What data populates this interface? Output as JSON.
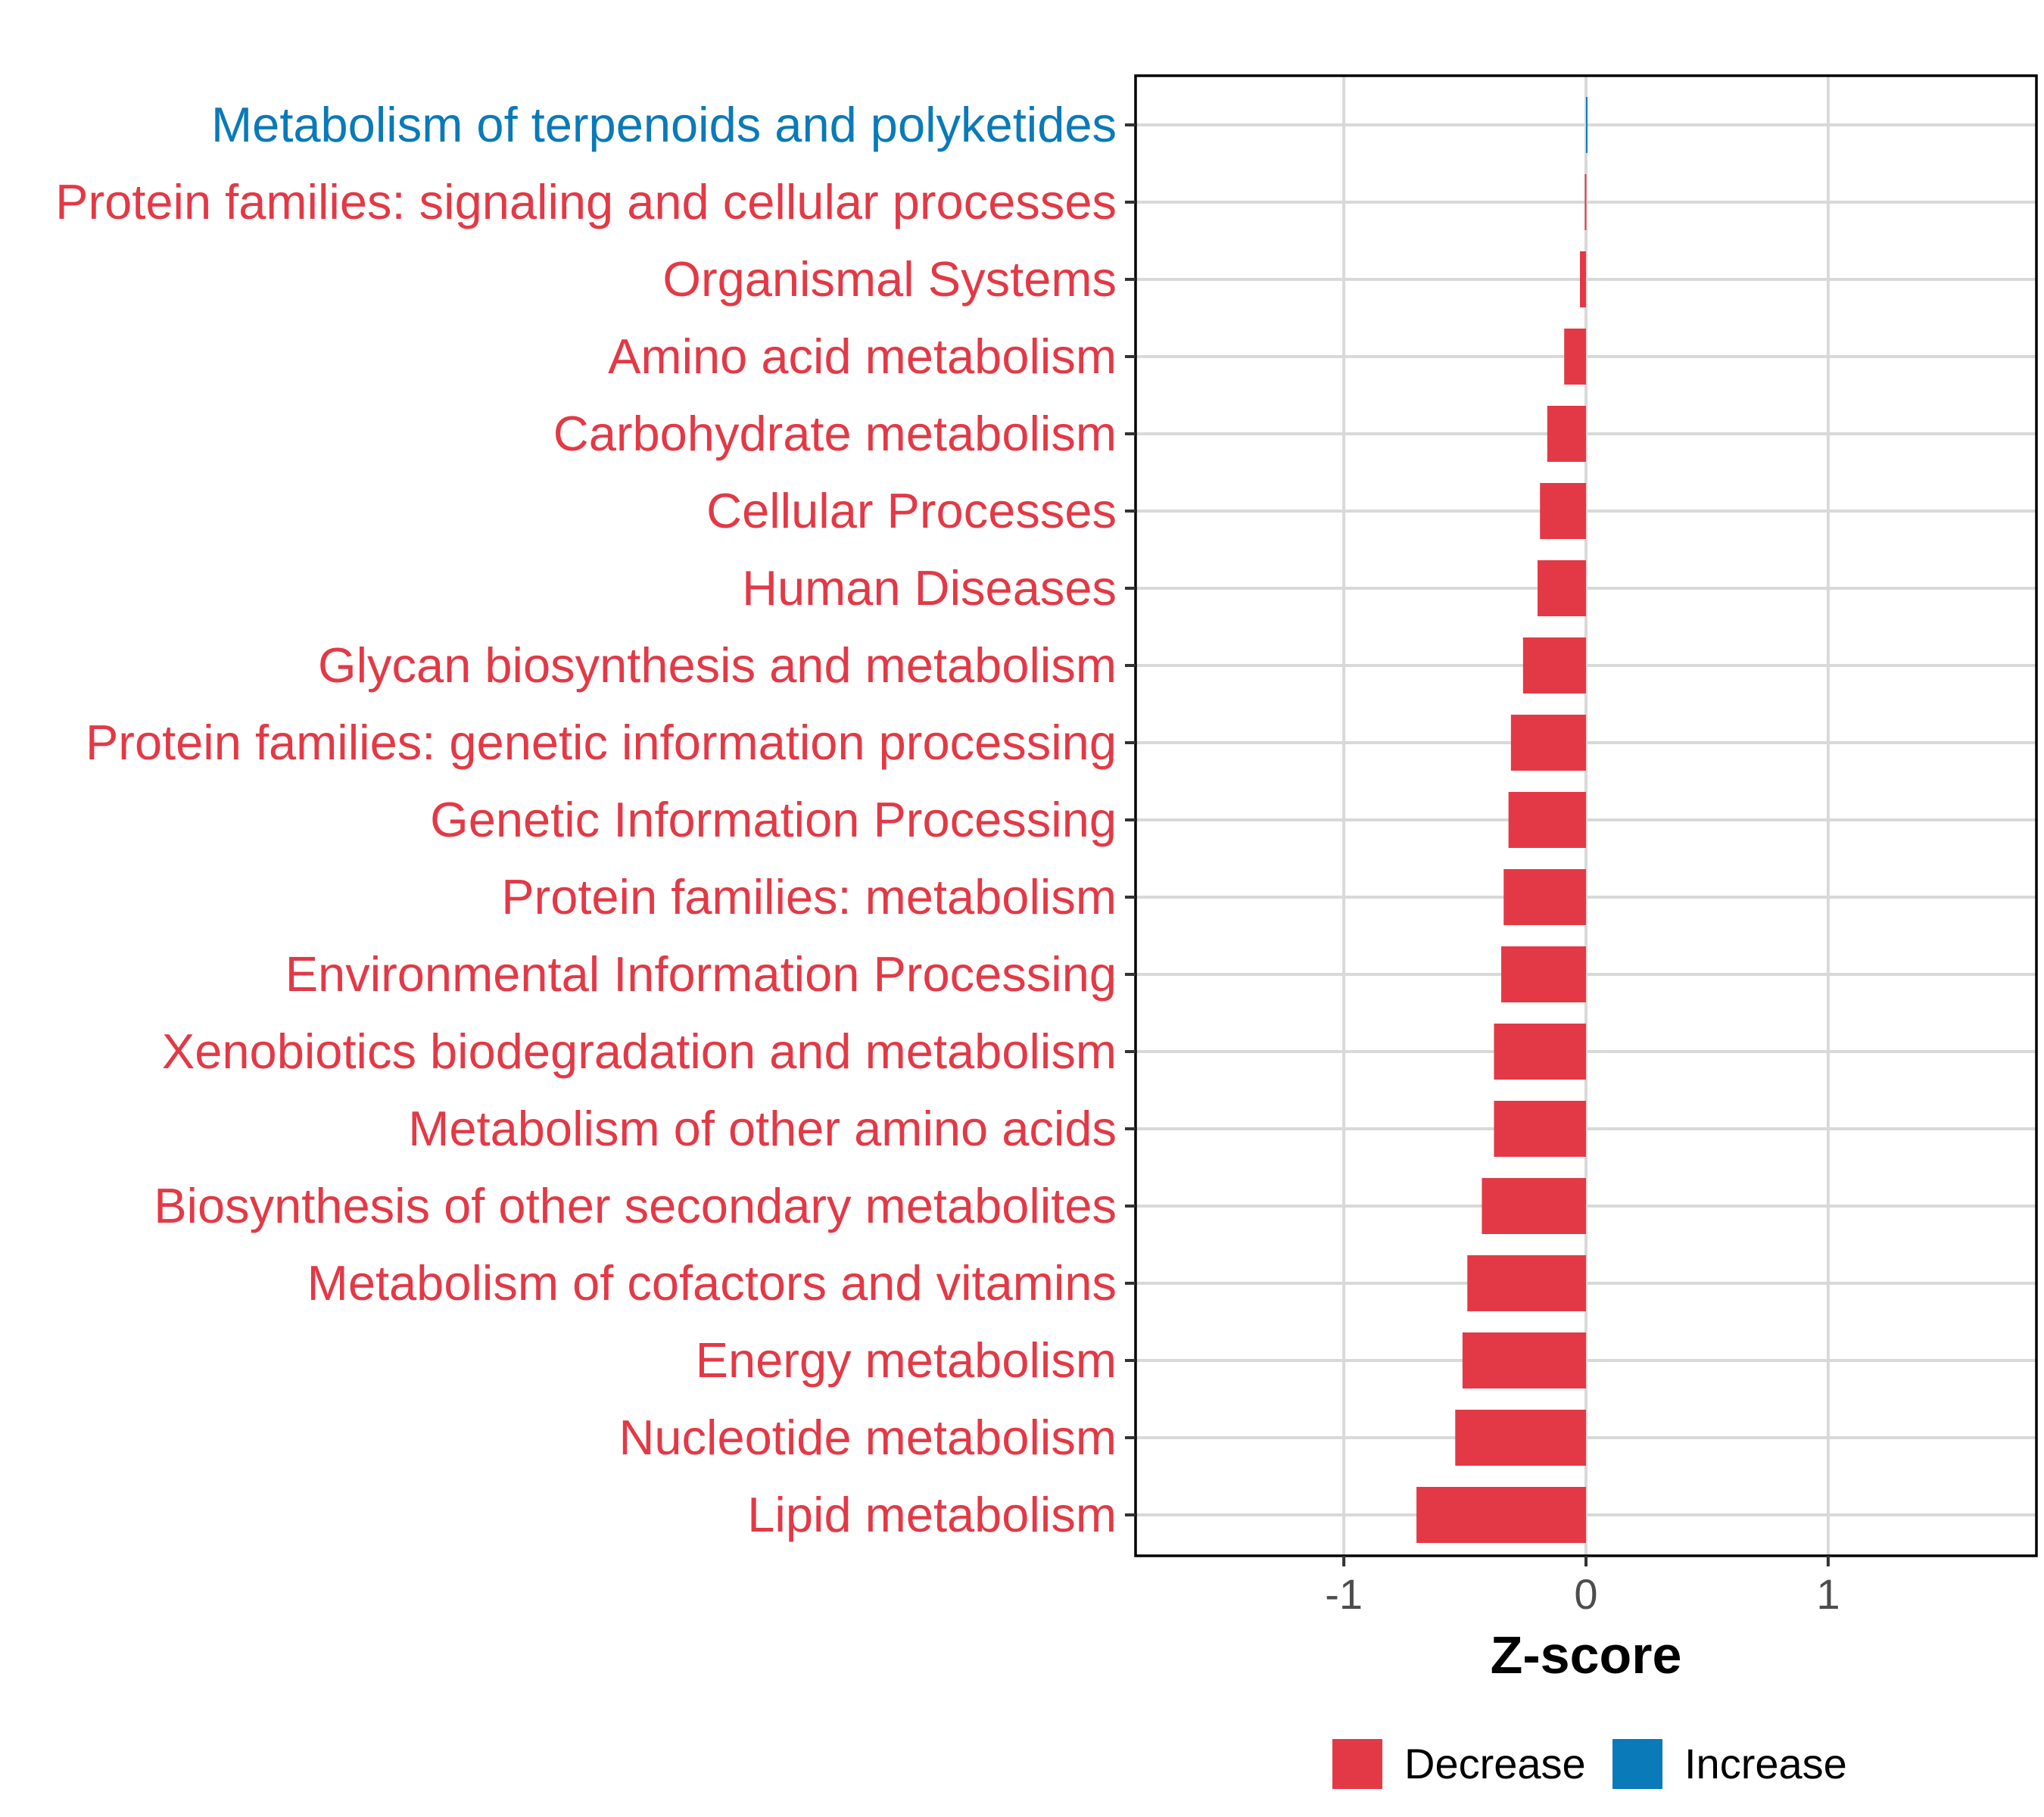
{
  "chart_data": {
    "type": "bar",
    "orientation": "horizontal",
    "title": "",
    "xlabel": "Z-score",
    "ylabel": "",
    "xlim": [
      -1.86,
      1.86
    ],
    "xticks": [
      -1,
      0,
      1
    ],
    "xtick_labels": [
      "-1",
      "0",
      "1"
    ],
    "grid": true,
    "legend_position": "bottom",
    "colors": {
      "Decrease": "#e33946",
      "Increase": "#0a7ab8"
    },
    "categories": [
      "Metabolism of terpenoids and polyketides",
      "Protein families: signaling and cellular processes",
      "Organismal Systems",
      "Amino acid metabolism",
      "Carbohydrate metabolism",
      "Cellular Processes",
      "Human Diseases",
      "Glycan biosynthesis and metabolism",
      "Protein families: genetic information processing",
      "Genetic Information Processing",
      "Protein families: metabolism",
      "Environmental Information Processing",
      "Xenobiotics biodegradation and metabolism",
      "Metabolism of other amino acids",
      "Biosynthesis of other secondary metabolites",
      "Metabolism of cofactors and vitamins",
      "Energy metabolism",
      "Nucleotide metabolism",
      "Lipid metabolism"
    ],
    "values": [
      0.005,
      -0.005,
      -0.025,
      -0.09,
      -0.16,
      -0.19,
      -0.2,
      -0.26,
      -0.31,
      -0.32,
      -0.34,
      -0.35,
      -0.38,
      -0.38,
      -0.43,
      -0.49,
      -0.51,
      -0.54,
      -0.7
    ],
    "groups": [
      "Increase",
      "Decrease",
      "Decrease",
      "Decrease",
      "Decrease",
      "Decrease",
      "Decrease",
      "Decrease",
      "Decrease",
      "Decrease",
      "Decrease",
      "Decrease",
      "Decrease",
      "Decrease",
      "Decrease",
      "Decrease",
      "Decrease",
      "Decrease",
      "Decrease"
    ],
    "legend": [
      "Decrease",
      "Increase"
    ]
  }
}
